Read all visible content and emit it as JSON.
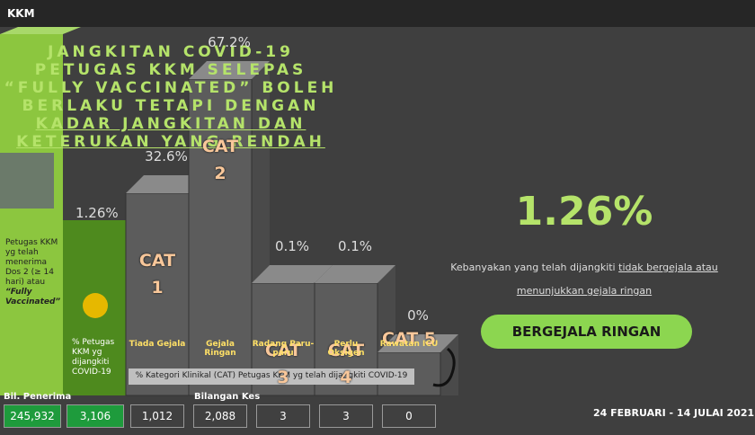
{
  "header": {
    "title": "KKM"
  },
  "left_panel": {
    "caption": "Petugas KKM yg telah menerima Dos 2 (≥ 14 hari) atau",
    "caption_emphasis": "“Fully Vaccinated”",
    "rate": "1.26%",
    "rate_caption": "% Petugas KKM yg dijangkiti COVID-19"
  },
  "categories": [
    {
      "cat": [
        "CAT",
        "1"
      ],
      "label": "Tiada Gejala",
      "percent": "32.6%",
      "cases": "1,012"
    },
    {
      "cat": [
        "CAT",
        "2"
      ],
      "label": "Gejala Ringan",
      "percent": "67.2%",
      "cases": "2,088"
    },
    {
      "cat": [
        "CAT",
        "3"
      ],
      "label": "Radang Paru-paru",
      "percent": "0.1%",
      "cases": "3"
    },
    {
      "cat": [
        "CAT",
        "4"
      ],
      "label": "Perlu Oksigen",
      "percent": "0.1%",
      "cases": "3"
    },
    {
      "cat": [
        "CAT 5"
      ],
      "label": "Rawatan ICU",
      "percent": "0%",
      "cases": "0"
    }
  ],
  "category_caption": "% Kategori Klinikal (CAT) Petugas KKM yg telah dijangkiti COVID-19",
  "counts": {
    "recipients_label": "Bil. Penerima",
    "recipients": "245,932",
    "infected": "3,106",
    "cases_label": "Bilangan Kes"
  },
  "headline": {
    "lines": [
      "JANGKITAN COVID-19",
      "PETUGAS KKM SELEPAS",
      "“FULLY VACCINATED” BOLEH",
      "BERLAKU TETAPI DENGAN"
    ],
    "underlined": [
      "KADAR JANGKITAN DAN",
      "KETERUKAN YANG RENDAH"
    ]
  },
  "big_rate": "1.26%",
  "note": {
    "text": "Kebanyakan yang telah dijangkiti ",
    "underlined_1": "tidak bergejala atau",
    "underlined_2": "menunjukkan gejala ringan"
  },
  "button": "BERGEJALA RINGAN",
  "period": "24 FEBRUARI - 14 JULAI 2021"
}
